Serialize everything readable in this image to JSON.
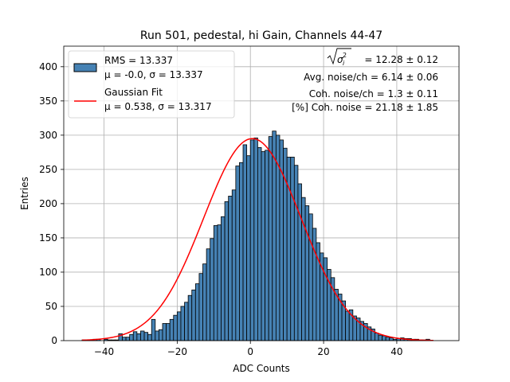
{
  "chart_data": {
    "type": "bar",
    "title": "Run 501, pedestal, hi Gain, Channels 44-47",
    "xlabel": "ADC Counts",
    "ylabel": "Entries",
    "xlim": [
      -51,
      57
    ],
    "ylim": [
      0,
      430
    ],
    "xticks": [
      -40,
      -20,
      0,
      20,
      40
    ],
    "yticks": [
      0,
      50,
      100,
      150,
      200,
      250,
      300,
      350,
      400
    ],
    "grid": true,
    "legend_position": "top-left",
    "bin_width": 1,
    "bin_start": -46,
    "histogram": {
      "name": "RMS = 13.337",
      "stats_label": "μ = -0.0, σ = 13.337",
      "color": "#4682b4",
      "values": [
        1,
        1,
        1,
        2,
        2,
        0,
        2,
        1,
        1,
        1,
        10,
        5,
        5,
        9,
        13,
        10,
        14,
        12,
        9,
        31,
        14,
        16,
        25,
        25,
        31,
        37,
        42,
        50,
        56,
        66,
        74,
        83,
        98,
        112,
        134,
        149,
        168,
        169,
        181,
        203,
        211,
        220,
        255,
        260,
        286,
        270,
        293,
        296,
        282,
        276,
        278,
        298,
        306,
        300,
        293,
        281,
        268,
        268,
        256,
        229,
        209,
        197,
        185,
        164,
        143,
        128,
        121,
        104,
        92,
        75,
        68,
        58,
        43,
        45,
        36,
        33,
        28,
        25,
        20,
        17,
        11,
        8,
        7,
        5,
        4,
        2,
        3,
        4,
        3,
        3,
        2,
        2,
        1,
        1,
        2
      ]
    },
    "fit": {
      "name": "Gaussian Fit",
      "stats_label": "μ = 0.538, σ = 13.317",
      "mu": 0.538,
      "sigma": 13.317,
      "amplitude": 295,
      "x_range": [
        -46,
        50
      ],
      "color": "#ff0000"
    },
    "annotations": {
      "sigma_label": "= 12.28 ± 0.12",
      "avg_noise": "Avg. noise/ch = 6.14 ± 0.06",
      "coh_noise": "Coh. noise/ch = 1.3 ± 0.11",
      "pct_coh_noise": "[%] Coh. noise = 21.18 ± 1.85"
    }
  }
}
